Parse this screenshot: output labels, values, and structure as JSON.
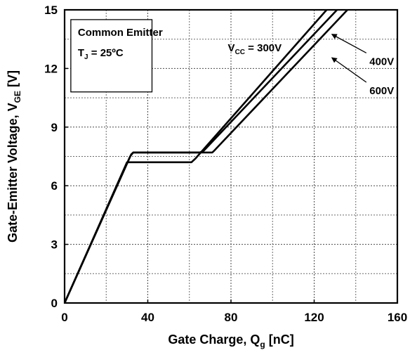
{
  "chart_data": {
    "type": "line",
    "title": "",
    "xlabel": {
      "main": "Gate Charge, Q",
      "sub": "g",
      "unit": " [nC]"
    },
    "ylabel": {
      "main": "Gate-Emitter Voltage, V",
      "sub": "GE",
      "unit": " [V]"
    },
    "xlim": [
      0,
      160
    ],
    "ylim": [
      0,
      15
    ],
    "x_ticks": [
      0,
      20,
      40,
      60,
      80,
      100,
      120,
      140,
      160
    ],
    "y_ticks": [
      0,
      1.5,
      3,
      4.5,
      6,
      7.5,
      9,
      10.5,
      12,
      13.5,
      15
    ],
    "x_tick_labels": [
      {
        "value": 0,
        "label": "0"
      },
      {
        "value": 40,
        "label": "40"
      },
      {
        "value": 80,
        "label": "80"
      },
      {
        "value": 120,
        "label": "120"
      },
      {
        "value": 160,
        "label": "160"
      }
    ],
    "y_tick_labels": [
      {
        "value": 0,
        "label": "0"
      },
      {
        "value": 3,
        "label": "3"
      },
      {
        "value": 6,
        "label": "6"
      },
      {
        "value": 9,
        "label": "9"
      },
      {
        "value": 12,
        "label": "12"
      },
      {
        "value": 15,
        "label": "15"
      }
    ],
    "grid": true,
    "legend_box": {
      "line1": "Common Emitter",
      "line2_main": "T",
      "line2_sub": "J",
      "line2_rest": " = 25ºC"
    },
    "series": [
      {
        "name": "300V",
        "points": [
          [
            0,
            0
          ],
          [
            30,
            7.2
          ],
          [
            61,
            7.2
          ],
          [
            63,
            7.4
          ],
          [
            126,
            15
          ]
        ]
      },
      {
        "name": "400V",
        "points": [
          [
            0,
            0
          ],
          [
            31.5,
            7.5
          ],
          [
            33,
            7.7
          ],
          [
            65,
            7.7
          ],
          [
            67,
            7.8
          ],
          [
            131,
            15
          ]
        ]
      },
      {
        "name": "600V",
        "points": [
          [
            0,
            0
          ],
          [
            32,
            7.6
          ],
          [
            33,
            7.7
          ],
          [
            71,
            7.7
          ],
          [
            72,
            7.8
          ],
          [
            136,
            15
          ]
        ]
      }
    ],
    "series_labels": [
      {
        "series": "300V",
        "text_main": "V",
        "text_sub": "CC",
        "text_rest": " = 300V",
        "x": 78.5,
        "y": 13.1
      },
      {
        "series": "400V",
        "text": "400V",
        "x": 152.5,
        "y": 12.4,
        "arrow_to": [
          128.5,
          13.75
        ]
      },
      {
        "series": "600V",
        "text": "600V",
        "x": 152.5,
        "y": 10.9,
        "arrow_to": [
          128.5,
          12.55
        ]
      }
    ]
  }
}
